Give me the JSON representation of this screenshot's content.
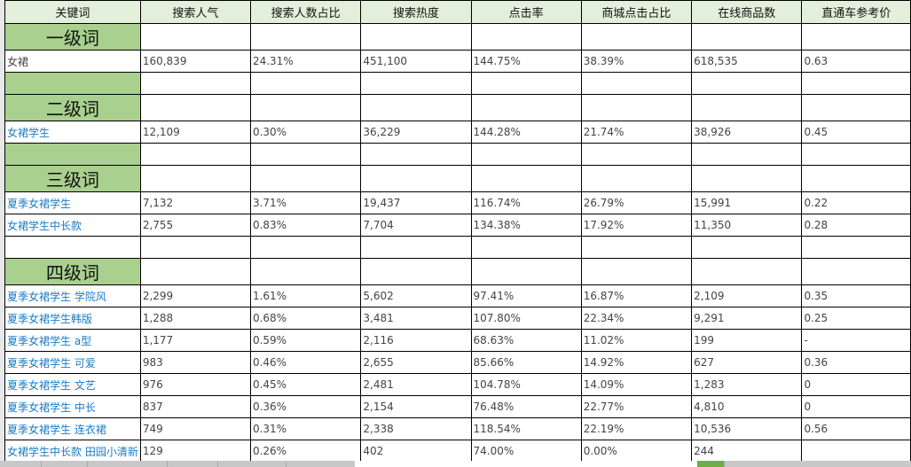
{
  "headers": [
    "关键词",
    "搜索人气",
    "搜索人数占比",
    "搜索热度",
    "点击率",
    "商城点击占比",
    "在线商品数",
    "直通车参考价"
  ],
  "colors": {
    "header_bg": "#e2efda",
    "level_bg": "#a9d08e",
    "link": "#1a7cc4"
  },
  "rows": [
    {
      "type": "level",
      "label": "一级词"
    },
    {
      "type": "data",
      "dark": true,
      "cells": [
        "女裙",
        "160,839",
        "24.31%",
        "451,100",
        "144.75%",
        "38.39%",
        "618,535",
        "0.63"
      ]
    },
    {
      "type": "blank",
      "green": true
    },
    {
      "type": "level",
      "label": "二级词"
    },
    {
      "type": "data",
      "cells": [
        "女裙学生",
        "12,109",
        "0.30%",
        "36,229",
        "144.28%",
        "21.74%",
        "38,926",
        "0.45"
      ]
    },
    {
      "type": "blank",
      "green": true
    },
    {
      "type": "level",
      "label": "三级词"
    },
    {
      "type": "data",
      "cells": [
        "夏季女裙学生",
        "7,132",
        "3.71%",
        "19,437",
        "116.74%",
        "26.79%",
        "15,991",
        "0.22"
      ]
    },
    {
      "type": "data",
      "cells": [
        "女裙学生中长款",
        "2,755",
        "0.83%",
        "7,704",
        "134.38%",
        "17.92%",
        "11,350",
        "0.28"
      ]
    },
    {
      "type": "blank",
      "green": false
    },
    {
      "type": "level",
      "label": "四级词"
    },
    {
      "type": "data",
      "cells": [
        "夏季女裙学生 学院风",
        "2,299",
        "1.61%",
        "5,602",
        "97.41%",
        "16.87%",
        "2,109",
        "0.35"
      ]
    },
    {
      "type": "data",
      "cells": [
        "夏季女裙学生韩版",
        "1,288",
        "0.68%",
        "3,481",
        "107.80%",
        "22.34%",
        "9,291",
        "0.25"
      ]
    },
    {
      "type": "data",
      "cells": [
        "夏季女裙学生 a型",
        "1,177",
        "0.59%",
        "2,116",
        "68.63%",
        "11.02%",
        "199",
        "-"
      ]
    },
    {
      "type": "data",
      "cells": [
        "夏季女裙学生 可爱",
        "983",
        "0.46%",
        "2,655",
        "85.66%",
        "14.92%",
        "627",
        "0.36"
      ]
    },
    {
      "type": "data",
      "cells": [
        "夏季女裙学生 文艺",
        "976",
        "0.45%",
        "2,481",
        "104.78%",
        "14.09%",
        "1,283",
        "0"
      ]
    },
    {
      "type": "data",
      "cells": [
        "夏季女裙学生 中长",
        "837",
        "0.36%",
        "2,154",
        "76.48%",
        "22.77%",
        "4,810",
        "0"
      ]
    },
    {
      "type": "data",
      "cells": [
        "夏季女裙学生 连衣裙",
        "749",
        "0.31%",
        "2,338",
        "118.54%",
        "22.19%",
        "10,536",
        "0.56"
      ]
    },
    {
      "type": "data",
      "cells": [
        "女裙学生中长款 田园小清新",
        "129",
        "0.26%",
        "402",
        "74.00%",
        "0.00%",
        "244",
        ""
      ]
    }
  ]
}
